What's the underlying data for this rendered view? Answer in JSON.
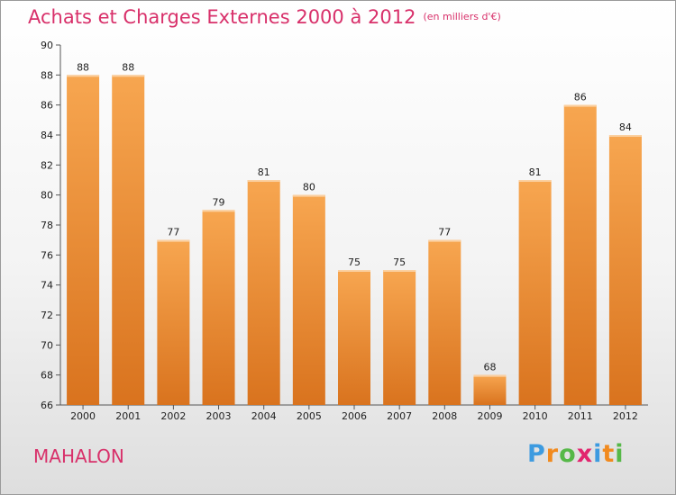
{
  "title": "Achats et Charges Externes 2000 à 2012",
  "subtitle": "(en milliers d'€)",
  "town": "MAHALON",
  "logo": {
    "letters": [
      "P",
      "r",
      "o",
      "x",
      "i",
      "t",
      "i"
    ],
    "colors": [
      "#3d9be0",
      "#f18a1e",
      "#56b848",
      "#e2256e",
      "#3d9be0",
      "#f18a1e",
      "#56b848"
    ]
  },
  "colors": {
    "title": "#d8306a",
    "bar_light": "#f7a650",
    "bar_dark": "#d9731e"
  },
  "chart_data": {
    "type": "bar",
    "categories": [
      "2000",
      "2001",
      "2002",
      "2003",
      "2004",
      "2005",
      "2006",
      "2007",
      "2008",
      "2009",
      "2010",
      "2011",
      "2012"
    ],
    "values": [
      88,
      88,
      77,
      79,
      81,
      80,
      75,
      75,
      77,
      68,
      81,
      86,
      84
    ],
    "title": "Achats et Charges Externes 2000 à 2012",
    "ylim": [
      66,
      90
    ],
    "yticks": [
      "66",
      "68",
      "70",
      "72",
      "74",
      "76",
      "78",
      "80",
      "82",
      "84",
      "86",
      "88",
      "90"
    ],
    "grid": false,
    "legend": "none"
  }
}
